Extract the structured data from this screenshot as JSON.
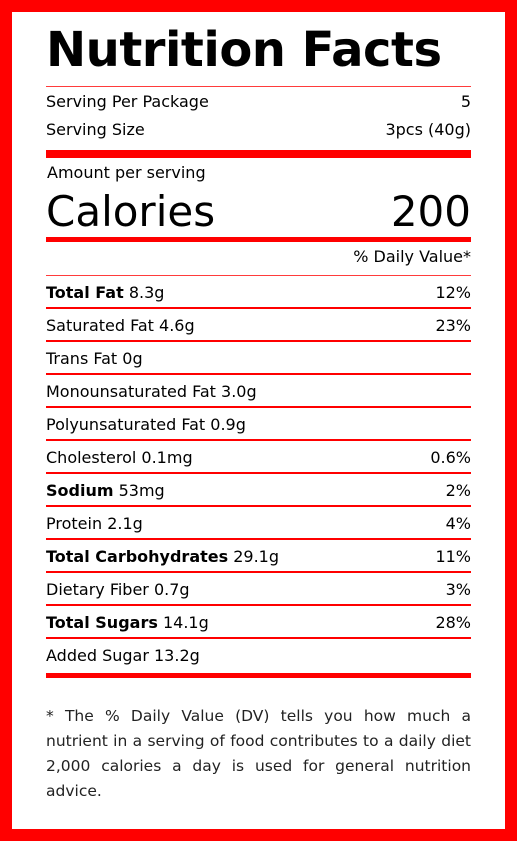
{
  "title": "Nutrition Facts",
  "serving": {
    "per_package_label": "Serving Per Package",
    "per_package_value": "5",
    "size_label": "Serving Size",
    "size_value": "3pcs (40g)"
  },
  "amount_label": "Amount per serving",
  "calories": {
    "label": "Calories",
    "value": "200"
  },
  "dv_header": "% Daily Value*",
  "nutrients": [
    {
      "name": "Total Fat",
      "amount": "8.3g",
      "dv": "12%"
    },
    {
      "name": "Saturated Fat",
      "amount": "4.6g",
      "dv": "23%"
    },
    {
      "name": "Trans Fat",
      "amount": "0g",
      "dv": ""
    },
    {
      "name": "Monounsaturated Fat",
      "amount": "3.0g",
      "dv": ""
    },
    {
      "name": "Polyunsaturated Fat",
      "amount": "0.9g",
      "dv": ""
    },
    {
      "name": "Cholesterol",
      "amount": "0.1mg",
      "dv": "0.6%"
    },
    {
      "name": "Sodium",
      "amount": "53mg",
      "dv": "2%"
    },
    {
      "name": "Protein",
      "amount": "2.1g",
      "dv": "4%"
    },
    {
      "name": "Total Carbohydrates",
      "amount": "29.1g",
      "dv": "11%"
    },
    {
      "name": "Dietary Fiber",
      "amount": "0.7g",
      "dv": "3%"
    },
    {
      "name": "Total Sugars",
      "amount": "14.1g",
      "dv": "28%"
    },
    {
      "name": "Added Sugar",
      "amount": "13.2g",
      "dv": ""
    }
  ],
  "footnote": "* The % Daily Value (DV) tells you how much a nutrient in a serving of food contributes to a daily diet 2,000 calories a day is used for general nutrition advice.",
  "colors": {
    "accent": "#ff0000",
    "text": "#000000"
  }
}
